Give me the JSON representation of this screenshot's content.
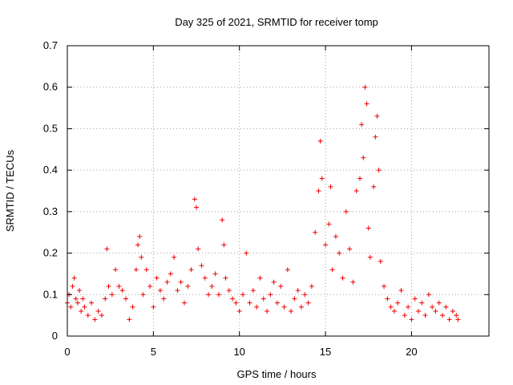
{
  "chart_data": {
    "type": "scatter",
    "title": "Day 325 of 2021, SRMTID for receiver tomp",
    "xlabel": "GPS time / hours",
    "ylabel": "SRMTID / TECUs",
    "xlim": [
      0,
      24.5
    ],
    "ylim": [
      0,
      0.7
    ],
    "x_ticks": [
      0,
      5,
      10,
      15,
      20
    ],
    "y_ticks": [
      0,
      0.1,
      0.2,
      0.3,
      0.4,
      0.5,
      0.6,
      0.7
    ],
    "x_tick_labels": [
      "0",
      "5",
      "10",
      "15",
      "20"
    ],
    "y_tick_labels": [
      "0",
      "0.1",
      "0.2",
      "0.3",
      "0.4",
      "0.5",
      "0.6",
      "0.7"
    ],
    "grid": true,
    "marker": "+",
    "marker_color": "#ee0000",
    "series": [
      {
        "name": "SRMTID",
        "x": [
          0.0,
          0.1,
          0.2,
          0.3,
          0.4,
          0.5,
          0.6,
          0.7,
          0.8,
          0.9,
          1.0,
          1.2,
          1.4,
          1.6,
          1.8,
          2.0,
          2.2,
          2.3,
          2.4,
          2.6,
          2.8,
          3.0,
          3.2,
          3.4,
          3.6,
          3.8,
          4.0,
          4.1,
          4.2,
          4.3,
          4.4,
          4.6,
          4.8,
          5.0,
          5.2,
          5.4,
          5.6,
          5.8,
          6.0,
          6.2,
          6.4,
          6.6,
          6.8,
          7.0,
          7.2,
          7.4,
          7.5,
          7.6,
          7.8,
          8.0,
          8.2,
          8.4,
          8.6,
          8.8,
          9.0,
          9.1,
          9.2,
          9.4,
          9.6,
          9.8,
          10.0,
          10.2,
          10.4,
          10.6,
          10.8,
          11.0,
          11.2,
          11.4,
          11.6,
          11.8,
          12.0,
          12.2,
          12.4,
          12.6,
          12.8,
          13.0,
          13.2,
          13.4,
          13.6,
          13.8,
          14.0,
          14.2,
          14.4,
          14.6,
          14.7,
          14.8,
          15.0,
          15.2,
          15.3,
          15.4,
          15.6,
          15.8,
          16.0,
          16.2,
          16.4,
          16.6,
          16.8,
          17.0,
          17.1,
          17.2,
          17.3,
          17.4,
          17.5,
          17.6,
          17.8,
          17.9,
          18.0,
          18.1,
          18.2,
          18.4,
          18.6,
          18.8,
          19.0,
          19.2,
          19.4,
          19.6,
          19.8,
          20.0,
          20.2,
          20.4,
          20.6,
          20.8,
          21.0,
          21.2,
          21.4,
          21.6,
          21.8,
          22.0,
          22.2,
          22.4,
          22.6,
          22.7
        ],
        "y": [
          0.08,
          0.1,
          0.07,
          0.12,
          0.14,
          0.09,
          0.08,
          0.11,
          0.06,
          0.09,
          0.07,
          0.05,
          0.08,
          0.04,
          0.06,
          0.05,
          0.09,
          0.21,
          0.12,
          0.1,
          0.16,
          0.12,
          0.11,
          0.09,
          0.04,
          0.07,
          0.16,
          0.22,
          0.24,
          0.19,
          0.1,
          0.16,
          0.12,
          0.07,
          0.14,
          0.11,
          0.09,
          0.13,
          0.15,
          0.19,
          0.11,
          0.13,
          0.08,
          0.12,
          0.16,
          0.33,
          0.31,
          0.21,
          0.17,
          0.14,
          0.1,
          0.12,
          0.15,
          0.1,
          0.28,
          0.22,
          0.14,
          0.11,
          0.09,
          0.08,
          0.06,
          0.1,
          0.2,
          0.08,
          0.11,
          0.07,
          0.14,
          0.09,
          0.06,
          0.1,
          0.13,
          0.08,
          0.12,
          0.07,
          0.16,
          0.06,
          0.09,
          0.11,
          0.07,
          0.1,
          0.08,
          0.12,
          0.25,
          0.35,
          0.47,
          0.38,
          0.22,
          0.27,
          0.36,
          0.16,
          0.24,
          0.2,
          0.14,
          0.3,
          0.21,
          0.13,
          0.35,
          0.38,
          0.51,
          0.43,
          0.6,
          0.56,
          0.26,
          0.19,
          0.36,
          0.48,
          0.53,
          0.4,
          0.18,
          0.12,
          0.09,
          0.07,
          0.06,
          0.08,
          0.11,
          0.05,
          0.07,
          0.04,
          0.09,
          0.06,
          0.08,
          0.05,
          0.1,
          0.07,
          0.06,
          0.08,
          0.05,
          0.07,
          0.04,
          0.06,
          0.05,
          0.04
        ]
      }
    ]
  }
}
